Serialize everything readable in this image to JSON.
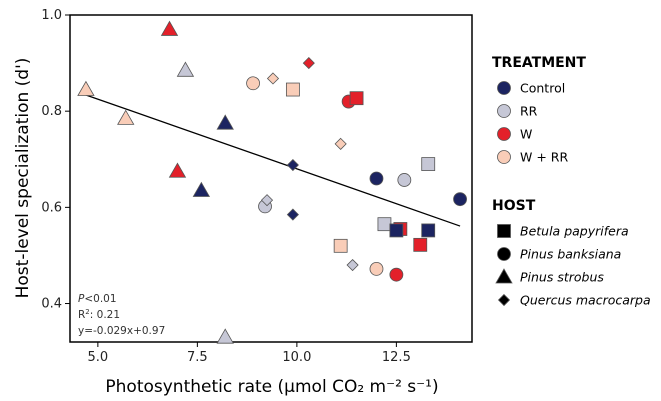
{
  "chart_data": {
    "type": "scatter",
    "xlabel": "Photosynthetic rate (µmol CO₂ m⁻² s⁻¹)",
    "ylabel": "Host-level specialization (d')",
    "xlim": [
      4.3,
      14.4
    ],
    "ylim": [
      0.32,
      1.0
    ],
    "x_ticks": [
      5.0,
      7.5,
      10.0,
      12.5
    ],
    "x_tick_labels": [
      "5.0",
      "7.5",
      "10.0",
      "12.5"
    ],
    "y_ticks": [
      0.4,
      0.6,
      0.8,
      1.0
    ],
    "y_tick_labels": [
      "0.4",
      "0.6",
      "0.8",
      "1.0"
    ],
    "grid": false,
    "legend_position": "right",
    "treatment_legend": {
      "title": "TREATMENT",
      "items": [
        {
          "key": "Control",
          "label": "Control",
          "color": "#1c2461"
        },
        {
          "key": "RR",
          "label": "RR",
          "color": "#c6c7d6"
        },
        {
          "key": "W",
          "label": "W",
          "color": "#e3202a"
        },
        {
          "key": "WRR",
          "label": "W + RR",
          "color": "#f9cdb8"
        }
      ]
    },
    "host_legend": {
      "title": "HOST",
      "items": [
        {
          "key": "square",
          "label": "Betula papyrifera"
        },
        {
          "key": "circle",
          "label": "Pinus banksiana"
        },
        {
          "key": "triangle",
          "label": "Pinus strobus"
        },
        {
          "key": "diamond",
          "label": "Quercus macrocarpa"
        }
      ]
    },
    "stats": {
      "p_prefix": "P",
      "p_value": "<0.01",
      "r2_prefix": "R",
      "r2_value": ": 0.21",
      "equation": "y=-0.029x+0.97"
    },
    "regression": {
      "slope": -0.029,
      "intercept": 0.97,
      "x_range": [
        4.6,
        14.1
      ]
    },
    "points": [
      {
        "x": 6.8,
        "y": 0.97,
        "treatment": "W",
        "host": "triangle"
      },
      {
        "x": 7.2,
        "y": 0.885,
        "treatment": "RR",
        "host": "triangle"
      },
      {
        "x": 4.7,
        "y": 0.845,
        "treatment": "WRR",
        "host": "triangle"
      },
      {
        "x": 5.7,
        "y": 0.785,
        "treatment": "WRR",
        "host": "triangle"
      },
      {
        "x": 8.2,
        "y": 0.775,
        "treatment": "Control",
        "host": "triangle"
      },
      {
        "x": 7.0,
        "y": 0.675,
        "treatment": "W",
        "host": "triangle"
      },
      {
        "x": 7.6,
        "y": 0.635,
        "treatment": "Control",
        "host": "triangle"
      },
      {
        "x": 8.2,
        "y": 0.33,
        "treatment": "RR",
        "host": "triangle"
      },
      {
        "x": 8.9,
        "y": 0.858,
        "treatment": "WRR",
        "host": "circle"
      },
      {
        "x": 11.3,
        "y": 0.82,
        "treatment": "W",
        "host": "circle"
      },
      {
        "x": 12.0,
        "y": 0.66,
        "treatment": "Control",
        "host": "circle"
      },
      {
        "x": 12.7,
        "y": 0.657,
        "treatment": "RR",
        "host": "circle"
      },
      {
        "x": 14.1,
        "y": 0.617,
        "treatment": "Control",
        "host": "circle"
      },
      {
        "x": 9.2,
        "y": 0.602,
        "treatment": "RR",
        "host": "circle"
      },
      {
        "x": 12.0,
        "y": 0.472,
        "treatment": "WRR",
        "host": "circle"
      },
      {
        "x": 12.5,
        "y": 0.46,
        "treatment": "W",
        "host": "circle"
      },
      {
        "x": 9.9,
        "y": 0.845,
        "treatment": "WRR",
        "host": "square"
      },
      {
        "x": 11.5,
        "y": 0.827,
        "treatment": "W",
        "host": "square"
      },
      {
        "x": 13.3,
        "y": 0.69,
        "treatment": "RR",
        "host": "square"
      },
      {
        "x": 12.2,
        "y": 0.565,
        "treatment": "RR",
        "host": "square"
      },
      {
        "x": 12.6,
        "y": 0.555,
        "treatment": "W",
        "host": "square"
      },
      {
        "x": 12.5,
        "y": 0.552,
        "treatment": "Control",
        "host": "square"
      },
      {
        "x": 13.3,
        "y": 0.552,
        "treatment": "Control",
        "host": "square"
      },
      {
        "x": 11.1,
        "y": 0.52,
        "treatment": "WRR",
        "host": "square"
      },
      {
        "x": 13.1,
        "y": 0.522,
        "treatment": "W",
        "host": "square"
      },
      {
        "x": 10.3,
        "y": 0.9,
        "treatment": "W",
        "host": "diamond"
      },
      {
        "x": 9.4,
        "y": 0.868,
        "treatment": "WRR",
        "host": "diamond"
      },
      {
        "x": 11.1,
        "y": 0.732,
        "treatment": "WRR",
        "host": "diamond"
      },
      {
        "x": 9.9,
        "y": 0.688,
        "treatment": "Control",
        "host": "diamond"
      },
      {
        "x": 9.25,
        "y": 0.615,
        "treatment": "RR",
        "host": "diamond"
      },
      {
        "x": 9.9,
        "y": 0.585,
        "treatment": "Control",
        "host": "diamond"
      },
      {
        "x": 11.4,
        "y": 0.48,
        "treatment": "RR",
        "host": "diamond"
      }
    ]
  }
}
